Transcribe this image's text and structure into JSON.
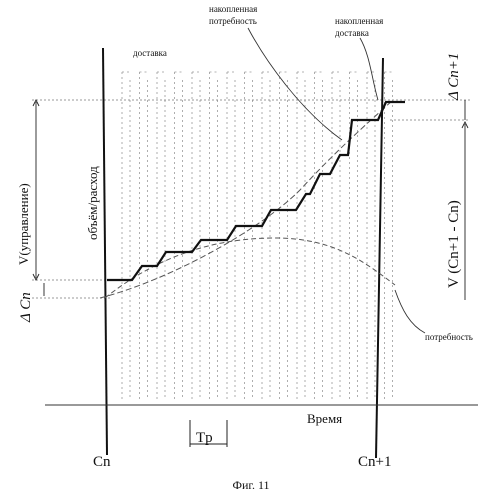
{
  "labels": {
    "delivery": "доставка",
    "accumulated_need_line1": "накопленная",
    "accumulated_need_line2": "потребность",
    "accumulated_delivery_line1": "накопленная",
    "accumulated_delivery_line2": "доставка",
    "delta_cn1": "Δ Cn+1",
    "volume_consumption": "объём/расход",
    "v_control": "V(управление)",
    "v_diff": "V (Cn+1 - Cn)",
    "delta_cn": "Δ Cn",
    "need": "потребность",
    "time": "Время",
    "tp": "Tp",
    "cn": "Cn",
    "cn1": "Cn+1"
  },
  "caption": "Фиг. 11"
}
